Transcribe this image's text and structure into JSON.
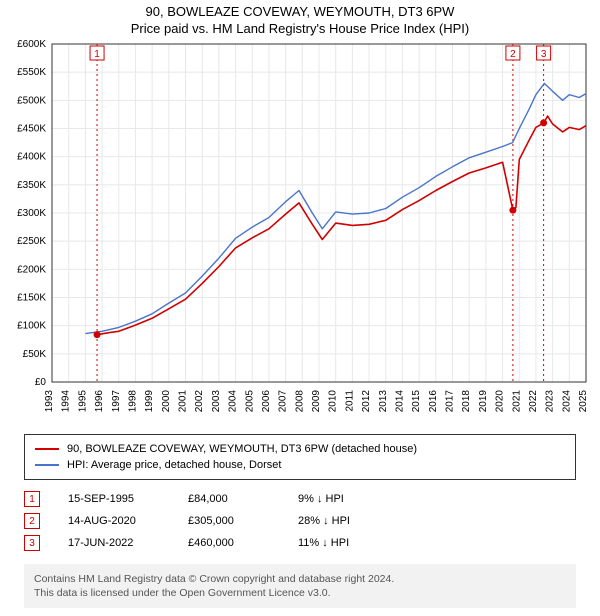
{
  "title_line1": "90, BOWLEAZE COVEWAY, WEYMOUTH, DT3 6PW",
  "title_line2": "Price paid vs. HM Land Registry's House Price Index (HPI)",
  "chart": {
    "type": "line",
    "background_color": "#ffffff",
    "grid_color": "#e8e8e8",
    "axis_color": "#333333",
    "label_fontsize": 11,
    "tick_fontsize": 10,
    "x": {
      "min": 1993,
      "max": 2025,
      "ticks": [
        1993,
        1994,
        1995,
        1996,
        1997,
        1998,
        1999,
        2000,
        2001,
        2002,
        2003,
        2004,
        2005,
        2006,
        2007,
        2008,
        2009,
        2010,
        2011,
        2012,
        2013,
        2014,
        2015,
        2016,
        2017,
        2018,
        2019,
        2020,
        2021,
        2022,
        2023,
        2024,
        2025
      ]
    },
    "y": {
      "min": 0,
      "max": 600000,
      "ticks": [
        0,
        50000,
        100000,
        150000,
        200000,
        250000,
        300000,
        350000,
        400000,
        450000,
        500000,
        550000,
        600000
      ],
      "tick_labels": [
        "£0",
        "£50K",
        "£100K",
        "£150K",
        "£200K",
        "£250K",
        "£300K",
        "£350K",
        "£400K",
        "£450K",
        "£500K",
        "£550K",
        "£600K"
      ]
    },
    "series": [
      {
        "id": "hpi",
        "label": "HPI: Average price, detached house, Dorset",
        "color": "#4a74c9",
        "line_width": 1.4,
        "points": [
          [
            1995.0,
            86000
          ],
          [
            1996.0,
            90000
          ],
          [
            1997.0,
            97000
          ],
          [
            1998.0,
            108000
          ],
          [
            1999.0,
            121000
          ],
          [
            2000.0,
            140000
          ],
          [
            2001.0,
            158000
          ],
          [
            2002.0,
            188000
          ],
          [
            2003.0,
            220000
          ],
          [
            2004.0,
            255000
          ],
          [
            2005.0,
            275000
          ],
          [
            2006.0,
            292000
          ],
          [
            2007.0,
            320000
          ],
          [
            2007.8,
            340000
          ],
          [
            2008.6,
            300000
          ],
          [
            2009.2,
            272000
          ],
          [
            2010.0,
            302000
          ],
          [
            2011.0,
            298000
          ],
          [
            2012.0,
            300000
          ],
          [
            2013.0,
            308000
          ],
          [
            2014.0,
            328000
          ],
          [
            2015.0,
            345000
          ],
          [
            2016.0,
            365000
          ],
          [
            2017.0,
            382000
          ],
          [
            2018.0,
            398000
          ],
          [
            2019.0,
            408000
          ],
          [
            2020.0,
            418000
          ],
          [
            2020.6,
            425000
          ],
          [
            2021.0,
            450000
          ],
          [
            2021.6,
            485000
          ],
          [
            2022.0,
            510000
          ],
          [
            2022.5,
            530000
          ],
          [
            2023.0,
            516000
          ],
          [
            2023.6,
            500000
          ],
          [
            2024.0,
            510000
          ],
          [
            2024.6,
            505000
          ],
          [
            2025.0,
            512000
          ]
        ]
      },
      {
        "id": "property",
        "label": "90, BOWLEAZE COVEWAY, WEYMOUTH, DT3 6PW (detached house)",
        "color": "#d00000",
        "line_width": 1.6,
        "points": [
          [
            1995.7,
            84000
          ],
          [
            1996.5,
            88000
          ],
          [
            1997.0,
            90000
          ],
          [
            1998.0,
            101000
          ],
          [
            1999.0,
            113000
          ],
          [
            2000.0,
            130000
          ],
          [
            2001.0,
            147000
          ],
          [
            2002.0,
            175000
          ],
          [
            2003.0,
            205000
          ],
          [
            2004.0,
            238000
          ],
          [
            2005.0,
            256000
          ],
          [
            2006.0,
            272000
          ],
          [
            2007.0,
            298000
          ],
          [
            2007.8,
            318000
          ],
          [
            2008.6,
            280000
          ],
          [
            2009.2,
            253000
          ],
          [
            2010.0,
            282000
          ],
          [
            2011.0,
            278000
          ],
          [
            2012.0,
            280000
          ],
          [
            2013.0,
            287000
          ],
          [
            2014.0,
            306000
          ],
          [
            2015.0,
            322000
          ],
          [
            2016.0,
            340000
          ],
          [
            2017.0,
            356000
          ],
          [
            2018.0,
            371000
          ],
          [
            2019.0,
            380000
          ],
          [
            2020.0,
            390000
          ],
          [
            2020.62,
            305000
          ],
          [
            2020.8,
            310000
          ],
          [
            2021.0,
            395000
          ],
          [
            2021.6,
            430000
          ],
          [
            2022.0,
            452000
          ],
          [
            2022.46,
            460000
          ],
          [
            2022.7,
            472000
          ],
          [
            2023.0,
            458000
          ],
          [
            2023.6,
            444000
          ],
          [
            2024.0,
            452000
          ],
          [
            2024.6,
            448000
          ],
          [
            2025.0,
            455000
          ]
        ]
      }
    ],
    "event_markers": [
      {
        "n": "1",
        "x": 1995.7,
        "y": 84000,
        "line_color": "#d00000"
      },
      {
        "n": "2",
        "x": 2020.62,
        "y": 305000,
        "line_color": "#d00000"
      },
      {
        "n": "3",
        "x": 2022.46,
        "y": 460000,
        "line_color": "#d00000"
      }
    ]
  },
  "legend": {
    "items": [
      {
        "color": "#d00000",
        "label": "90, BOWLEAZE COVEWAY, WEYMOUTH, DT3 6PW (detached house)"
      },
      {
        "color": "#4a74c9",
        "label": "HPI: Average price, detached house, Dorset"
      }
    ]
  },
  "marker_rows": [
    {
      "n": "1",
      "date": "15-SEP-1995",
      "price": "£84,000",
      "diff": "9% ↓ HPI"
    },
    {
      "n": "2",
      "date": "14-AUG-2020",
      "price": "£305,000",
      "diff": "28% ↓ HPI"
    },
    {
      "n": "3",
      "date": "17-JUN-2022",
      "price": "£460,000",
      "diff": "11% ↓ HPI"
    }
  ],
  "attribution_line1": "Contains HM Land Registry data © Crown copyright and database right 2024.",
  "attribution_line2": "This data is licensed under the Open Government Licence v3.0."
}
